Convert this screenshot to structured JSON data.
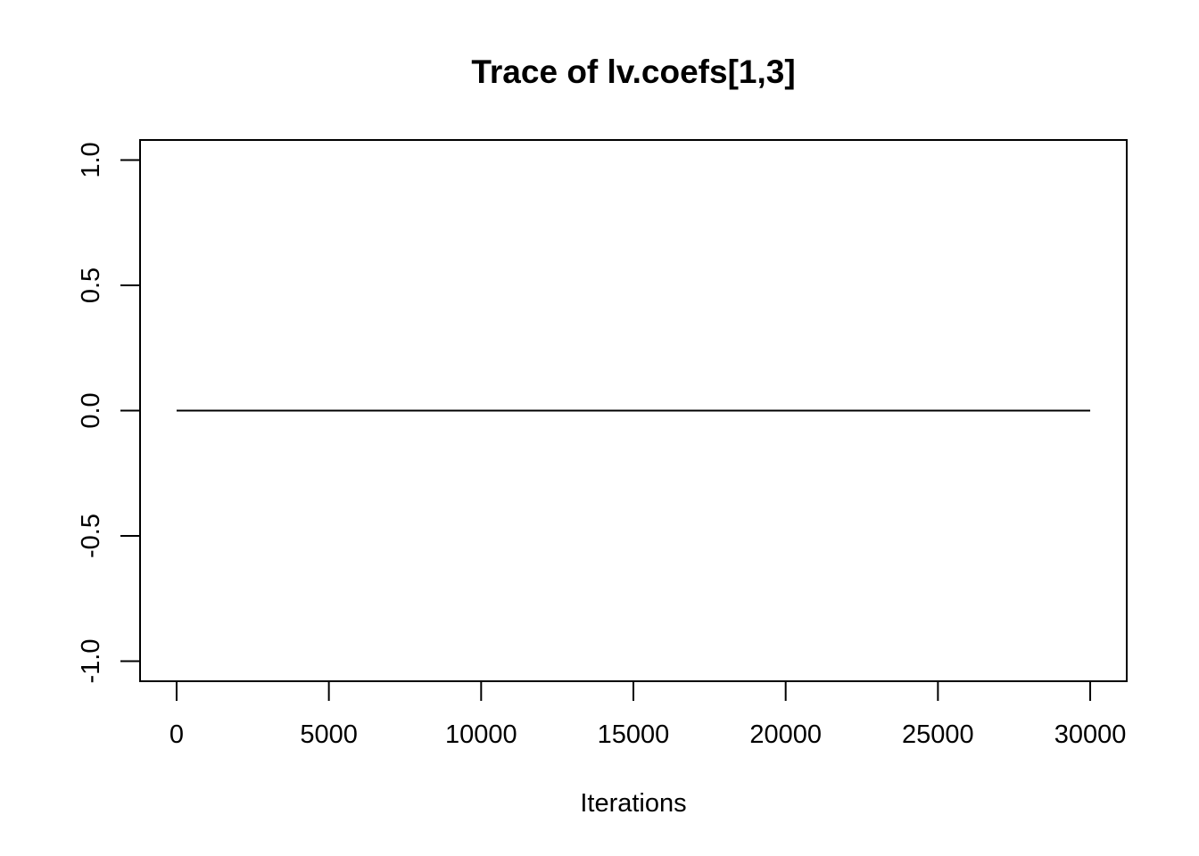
{
  "chart_data": {
    "type": "line",
    "title": "Trace of lv.coefs[1,3]",
    "xlabel": "Iterations",
    "ylabel": "",
    "xlim": [
      -1200,
      31200
    ],
    "ylim": [
      -1.08,
      1.08
    ],
    "x_ticks": [
      0,
      5000,
      10000,
      15000,
      20000,
      25000,
      30000
    ],
    "x_tick_labels": [
      "0",
      "5000",
      "10000",
      "15000",
      "20000",
      "25000",
      "30000"
    ],
    "y_ticks": [
      -1.0,
      -0.5,
      0.0,
      0.5,
      1.0
    ],
    "y_tick_labels": [
      "-1.0",
      "-0.5",
      "0.0",
      "0.5",
      "1.0"
    ],
    "grid": false,
    "series": [
      {
        "x": [
          0,
          30000
        ],
        "y": [
          0.0,
          0.0
        ]
      }
    ],
    "line_color": "#000000"
  }
}
